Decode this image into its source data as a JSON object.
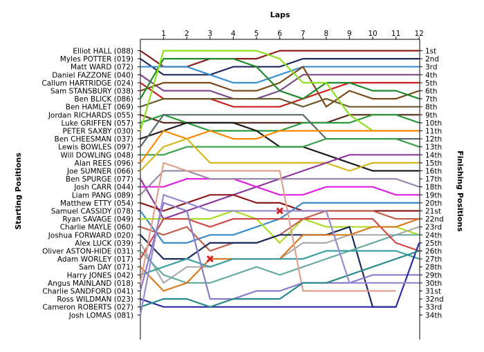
{
  "chart_data": {
    "type": "line",
    "title": "Laps",
    "ylabel_left": "Starting Positions",
    "ylabel_right": "Finishing Positions",
    "laps": [
      1,
      2,
      3,
      4,
      5,
      6,
      7,
      8,
      9,
      10,
      11,
      12
    ],
    "starting_grid": [
      "Elliot HALL (088)",
      "Myles POTTER (019)",
      "Matt WARD (072)",
      "Daniel FAZZONE (040)",
      "Callum HARTRIDGE (024)",
      "Sam STANSBURY (038)",
      "Ben BLICK (086)",
      "Ben HAMLET (069)",
      "Jordan RICHARDS (055)",
      "Luke GRIFFEN (057)",
      "PETER SAXBY (030)",
      "Ben CHEESMAN (037)",
      "Lewis BOWLES (097)",
      "Will DOWLING (048)",
      "Alan REES (096)",
      "Joe SUMNER (066)",
      "Ben SPURGE (077)",
      "Josh CARR (044)",
      "Liam PANG (089)",
      "Matthew ETTY (054)",
      "Samuel CASSIDY (078)",
      "Ryan SAVAGE (049)",
      "Charlie MAYLE (060)",
      "Joshua FORWARD (020)",
      "Alex LUCK (039)",
      "Oliver ASTON-HIDE (031)",
      "Adam WORLEY (017)",
      "Sam DAY (071)",
      "Harry JONES (042)",
      "Angus MAINLAND (018)",
      "Charlie SANDFORD (041)",
      "Ross WILDMAN (023)",
      "Cameron ROBERTS (027)",
      "Josh LOMAS (081)"
    ],
    "finishing_positions": [
      "1st",
      "2nd",
      "3rd",
      "4th",
      "5th",
      "6th",
      "7th",
      "8th",
      "9th",
      "10th",
      "11th",
      "12th",
      "13th",
      "14th",
      "15th",
      "16th",
      "17th",
      "18th",
      "19th",
      "20th",
      "21st",
      "22nd",
      "23rd",
      "24th",
      "25th",
      "26th",
      "27th",
      "28th",
      "29th",
      "30th",
      "31st",
      "32nd",
      "33rd",
      "34th"
    ],
    "series": [
      {
        "color": "#8b1a1a",
        "positions": [
          3,
          3,
          2,
          2,
          2,
          1,
          1,
          1,
          1,
          1,
          1,
          1
        ]
      },
      {
        "color": "#1e2a5a",
        "positions": [
          4,
          4,
          4,
          3,
          3,
          3,
          2,
          2,
          2,
          2,
          2,
          2
        ]
      },
      {
        "color": "#3a8fd0",
        "positions": [
          3,
          3,
          4,
          5,
          5,
          4,
          3,
          3,
          3,
          3,
          3,
          3
        ]
      },
      {
        "color": "#7a4a8a",
        "positions": [
          6,
          6,
          6,
          7,
          7,
          6,
          4,
          4,
          4,
          4,
          4,
          4
        ]
      },
      {
        "color": "#c81e1e",
        "positions": [
          7,
          7,
          7,
          8,
          8,
          8,
          7,
          6,
          5,
          5,
          5,
          5
        ]
      },
      {
        "color": "#7a4a1a",
        "positions": [
          5,
          5,
          5,
          6,
          6,
          5,
          3,
          8,
          6,
          7,
          7,
          6
        ]
      },
      {
        "color": "#1f8a2a",
        "positions": [
          2,
          2,
          2,
          2,
          3,
          6,
          7,
          5,
          5,
          6,
          6,
          7
        ]
      },
      {
        "color": "#6a5a2a",
        "positions": [
          7,
          7,
          7,
          7,
          7,
          7,
          8,
          7,
          8,
          8,
          8,
          8
        ]
      },
      {
        "color": "#5a2a1a",
        "positions": [
          10,
          10,
          10,
          10,
          10,
          10,
          10,
          10,
          9,
          9,
          9,
          9
        ]
      },
      {
        "color": "#2a9a3a",
        "positions": [
          9,
          10,
          11,
          11,
          11,
          11,
          10,
          10,
          10,
          9,
          9,
          10
        ]
      },
      {
        "color": "#8de020",
        "positions": [
          1,
          1,
          1,
          1,
          1,
          2,
          5,
          5,
          9,
          11,
          11,
          11
        ]
      },
      {
        "color": "#1a1a1a",
        "positions": [
          11,
          10,
          10,
          10,
          11,
          13,
          13,
          14,
          15,
          16,
          16,
          16
        ]
      },
      {
        "color": "#5a6a6a",
        "positions": [
          9,
          9,
          9,
          9,
          9,
          9,
          9,
          12,
          12,
          12,
          12,
          12
        ]
      },
      {
        "color": "#3aa04a",
        "positions": [
          14,
          13,
          13,
          13,
          13,
          13,
          13,
          12,
          12,
          12,
          12,
          13
        ]
      },
      {
        "color": "#ff8800",
        "positions": [
          11,
          12,
          11,
          12,
          12,
          11,
          11,
          11,
          11,
          11,
          11,
          11
        ]
      },
      {
        "color": "#d4b820",
        "positions": [
          13,
          12,
          15,
          15,
          15,
          15,
          15,
          15,
          16,
          15,
          15,
          15
        ]
      },
      {
        "color": "#8a3a9a",
        "positions": [
          22,
          21,
          20,
          19,
          18,
          17,
          16,
          15,
          14,
          14,
          14,
          14
        ]
      },
      {
        "color": "#e01ee0",
        "positions": [
          18,
          17,
          17,
          17,
          18,
          19,
          19,
          18,
          18,
          18,
          19,
          19
        ]
      },
      {
        "color": "#9a8aaa",
        "positions": [
          16,
          16,
          17,
          17,
          17,
          17,
          17,
          17,
          17,
          17,
          17,
          18
        ]
      },
      {
        "color": "#8a1a1a",
        "positions": [
          21,
          20,
          19,
          19,
          20,
          20,
          21,
          21,
          21,
          21,
          21,
          21
        ]
      },
      {
        "color": "#3a8aca",
        "positions": [
          25,
          25,
          24,
          24,
          23,
          22,
          20,
          20,
          20,
          20,
          20,
          20
        ]
      },
      {
        "color": "#aade20",
        "positions": [
          22,
          22,
          22,
          21,
          22,
          25,
          22,
          23,
          23,
          23,
          23,
          24
        ]
      },
      {
        "color": "#c06050",
        "positions": [
          24,
          23,
          26,
          25,
          25,
          24,
          22,
          21,
          21,
          21,
          22,
          22
        ]
      },
      {
        "color": "#1a2a5a",
        "positions": [
          27,
          27,
          25,
          25,
          25,
          24,
          24,
          24,
          23,
          33,
          33,
          null
        ]
      },
      {
        "color": "#aaaaaa",
        "positions": [
          30,
          28,
          28,
          27,
          27,
          27,
          25,
          25,
          24,
          24,
          24,
          23
        ]
      },
      {
        "color": "#6aaaa0",
        "positions": [
          29,
          30,
          30,
          29,
          28,
          29,
          28,
          27,
          26,
          25,
          24,
          24
        ]
      },
      {
        "color": "#d04a4a",
        "positions": [
          22,
          22,
          23,
          22,
          22,
          22,
          22,
          22,
          22,
          22,
          25,
          26
        ]
      },
      {
        "color": "#d87a20",
        "positions": [
          31,
          30,
          27,
          27,
          27,
          27,
          24,
          24,
          24,
          23,
          23,
          22
        ]
      },
      {
        "color": "#3aa0a0",
        "positions": [
          28,
          27,
          28,
          27,
          27,
          27,
          27,
          26,
          26,
          26,
          26,
          27
        ]
      },
      {
        "color": "#e0a090",
        "positions": [
          15,
          16,
          16,
          16,
          16,
          16,
          31,
          31,
          31,
          31,
          31,
          null
        ]
      },
      {
        "color": "#8a7aca",
        "positions": [
          20,
          21,
          32,
          32,
          31,
          31,
          30,
          30,
          30,
          29,
          29,
          29
        ]
      },
      {
        "color": "#2a2aa0",
        "positions": [
          33,
          33,
          33,
          33,
          33,
          33,
          33,
          33,
          33,
          33,
          33,
          25
        ]
      },
      {
        "color": "#2a8a8a",
        "positions": [
          32,
          32,
          33,
          32,
          32,
          32,
          30,
          30,
          29,
          28,
          27,
          26
        ]
      },
      {
        "color": "#9a8ad0",
        "positions": [
          19,
          20,
          21,
          21,
          21,
          21,
          21,
          21,
          30,
          30,
          30,
          30
        ]
      }
    ],
    "retirements": [
      {
        "lap": 3,
        "position": 27
      },
      {
        "lap": 6,
        "position": 21
      }
    ]
  }
}
